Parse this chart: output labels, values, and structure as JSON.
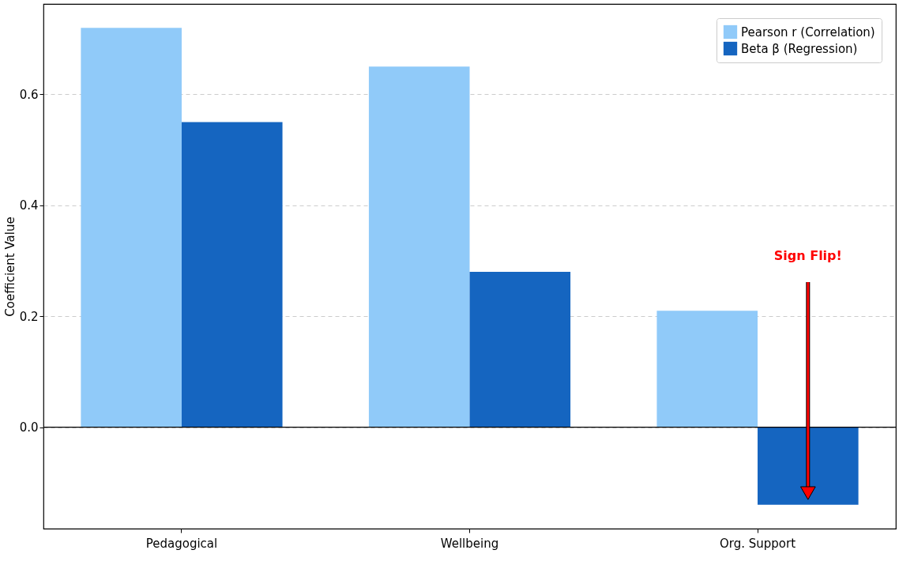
{
  "chart_data": {
    "type": "bar",
    "ylabel": "Coefficient Value",
    "categories": [
      "Pedagogical",
      "Wellbeing",
      "Org. Support"
    ],
    "series": [
      {
        "name": "Pearson r (Correlation)",
        "color": "#90caf9",
        "values": [
          0.72,
          0.65,
          0.21
        ]
      },
      {
        "name": "Beta β (Regression)",
        "color": "#1565c0",
        "values": [
          0.55,
          0.28,
          -0.14
        ]
      }
    ],
    "ylim": [
      -0.183,
      0.763
    ],
    "yticks": [
      {
        "value": 0,
        "label": "0.0"
      },
      {
        "value": 0.2,
        "label": "0.2"
      },
      {
        "value": 0.4,
        "label": "0.4"
      },
      {
        "value": 0.6,
        "label": "0.6"
      }
    ],
    "ref_lines": [
      {
        "axis": "y",
        "value": 0,
        "color": "#000000"
      }
    ],
    "annotations": [
      "Sign Flip!"
    ],
    "grid": "y",
    "legend": "top right"
  }
}
